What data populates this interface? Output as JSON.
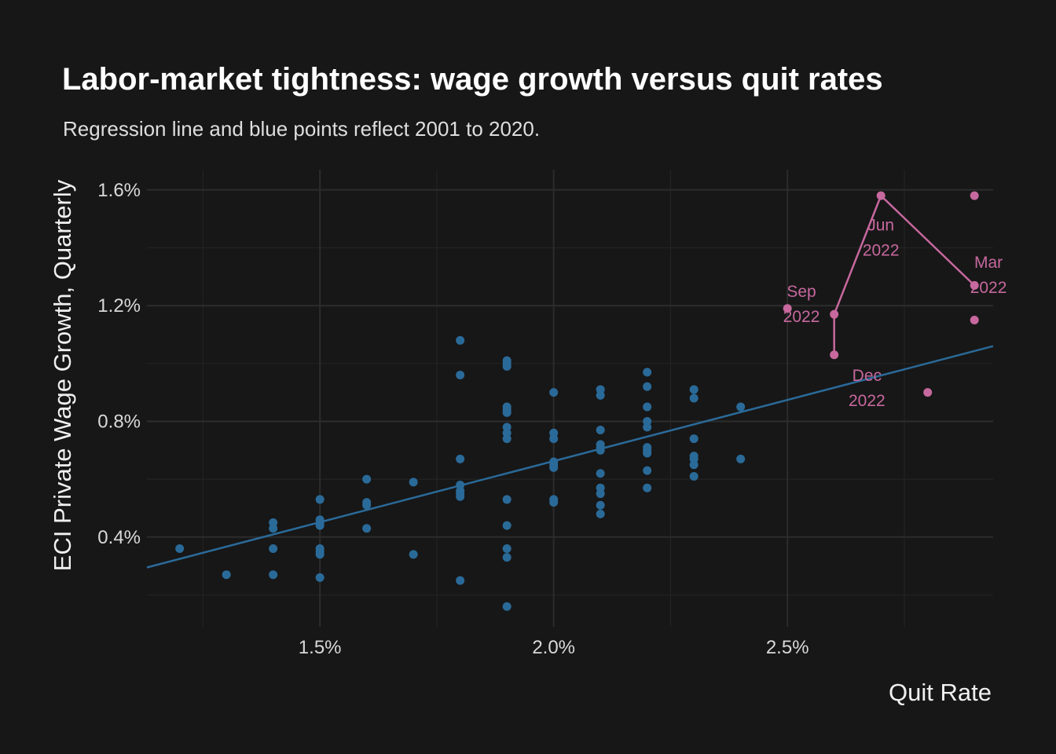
{
  "chart_data": {
    "type": "scatter",
    "title": "Labor-market tightness: wage growth versus quit rates",
    "subtitle": "Regression line and blue points reflect 2001 to 2020.",
    "xlabel": "Quit Rate",
    "ylabel": "ECI Private Wage Growth, Quarterly",
    "xlim": [
      1.13,
      2.94
    ],
    "ylim": [
      0.09,
      1.67
    ],
    "x_major_ticks": [
      1.5,
      2.0,
      2.5
    ],
    "x_tick_labels": [
      "1.5%",
      "2.0%",
      "2.5%"
    ],
    "x_minor_ticks": [
      1.25,
      1.75,
      2.25,
      2.75
    ],
    "y_major_ticks": [
      0.4,
      0.8,
      1.2,
      1.6
    ],
    "y_tick_labels": [
      "0.4%",
      "0.8%",
      "1.2%",
      "1.6%"
    ],
    "y_minor_ticks": [
      0.2,
      0.6,
      1.0,
      1.4
    ],
    "grid": true,
    "colors": {
      "historical": "#2a6a99",
      "recent": "#c7689e",
      "background": "#171717"
    },
    "regression_line": {
      "x": [
        1.13,
        2.94
      ],
      "y": [
        0.295,
        1.06
      ]
    },
    "series": [
      {
        "points": [
          {
            "x": 1.2,
            "y": 0.36
          },
          {
            "x": 1.3,
            "y": 0.27
          },
          {
            "x": 1.4,
            "y": 0.45
          },
          {
            "x": 1.4,
            "y": 0.43
          },
          {
            "x": 1.4,
            "y": 0.36
          },
          {
            "x": 1.4,
            "y": 0.27
          },
          {
            "x": 1.5,
            "y": 0.53
          },
          {
            "x": 1.5,
            "y": 0.46
          },
          {
            "x": 1.5,
            "y": 0.45
          },
          {
            "x": 1.5,
            "y": 0.44
          },
          {
            "x": 1.5,
            "y": 0.36
          },
          {
            "x": 1.5,
            "y": 0.35
          },
          {
            "x": 1.5,
            "y": 0.34
          },
          {
            "x": 1.5,
            "y": 0.26
          },
          {
            "x": 1.6,
            "y": 0.6
          },
          {
            "x": 1.6,
            "y": 0.52
          },
          {
            "x": 1.6,
            "y": 0.51
          },
          {
            "x": 1.6,
            "y": 0.43
          },
          {
            "x": 1.7,
            "y": 0.59
          },
          {
            "x": 1.7,
            "y": 0.34
          },
          {
            "x": 1.8,
            "y": 1.08
          },
          {
            "x": 1.8,
            "y": 0.96
          },
          {
            "x": 1.8,
            "y": 0.67
          },
          {
            "x": 1.8,
            "y": 0.58
          },
          {
            "x": 1.8,
            "y": 0.56
          },
          {
            "x": 1.8,
            "y": 0.55
          },
          {
            "x": 1.8,
            "y": 0.54
          },
          {
            "x": 1.8,
            "y": 0.25
          },
          {
            "x": 1.9,
            "y": 1.01
          },
          {
            "x": 1.9,
            "y": 1.0
          },
          {
            "x": 1.9,
            "y": 0.99
          },
          {
            "x": 1.9,
            "y": 0.85
          },
          {
            "x": 1.9,
            "y": 0.84
          },
          {
            "x": 1.9,
            "y": 0.83
          },
          {
            "x": 1.9,
            "y": 0.78
          },
          {
            "x": 1.9,
            "y": 0.76
          },
          {
            "x": 1.9,
            "y": 0.74
          },
          {
            "x": 1.9,
            "y": 0.53
          },
          {
            "x": 1.9,
            "y": 0.44
          },
          {
            "x": 1.9,
            "y": 0.36
          },
          {
            "x": 1.9,
            "y": 0.33
          },
          {
            "x": 1.9,
            "y": 0.16
          },
          {
            "x": 2.0,
            "y": 0.9
          },
          {
            "x": 2.0,
            "y": 0.76
          },
          {
            "x": 2.0,
            "y": 0.74
          },
          {
            "x": 2.0,
            "y": 0.66
          },
          {
            "x": 2.0,
            "y": 0.65
          },
          {
            "x": 2.0,
            "y": 0.64
          },
          {
            "x": 2.0,
            "y": 0.53
          },
          {
            "x": 2.0,
            "y": 0.52
          },
          {
            "x": 2.1,
            "y": 0.91
          },
          {
            "x": 2.1,
            "y": 0.89
          },
          {
            "x": 2.1,
            "y": 0.77
          },
          {
            "x": 2.1,
            "y": 0.72
          },
          {
            "x": 2.1,
            "y": 0.71
          },
          {
            "x": 2.1,
            "y": 0.7
          },
          {
            "x": 2.1,
            "y": 0.62
          },
          {
            "x": 2.1,
            "y": 0.57
          },
          {
            "x": 2.1,
            "y": 0.55
          },
          {
            "x": 2.1,
            "y": 0.51
          },
          {
            "x": 2.1,
            "y": 0.48
          },
          {
            "x": 2.2,
            "y": 0.97
          },
          {
            "x": 2.2,
            "y": 0.92
          },
          {
            "x": 2.2,
            "y": 0.85
          },
          {
            "x": 2.2,
            "y": 0.8
          },
          {
            "x": 2.2,
            "y": 0.78
          },
          {
            "x": 2.2,
            "y": 0.71
          },
          {
            "x": 2.2,
            "y": 0.7
          },
          {
            "x": 2.2,
            "y": 0.69
          },
          {
            "x": 2.2,
            "y": 0.63
          },
          {
            "x": 2.2,
            "y": 0.57
          },
          {
            "x": 2.3,
            "y": 0.91
          },
          {
            "x": 2.3,
            "y": 0.88
          },
          {
            "x": 2.3,
            "y": 0.74
          },
          {
            "x": 2.3,
            "y": 0.68
          },
          {
            "x": 2.3,
            "y": 0.67
          },
          {
            "x": 2.3,
            "y": 0.65
          },
          {
            "x": 2.3,
            "y": 0.61
          },
          {
            "x": 2.4,
            "y": 0.85
          },
          {
            "x": 2.4,
            "y": 0.67
          }
        ]
      },
      {
        "points": [
          {
            "x": 2.5,
            "y": 1.19
          },
          {
            "x": 2.8,
            "y": 0.9
          },
          {
            "x": 2.9,
            "y": 1.58
          },
          {
            "x": 2.9,
            "y": 1.15
          }
        ],
        "path": [
          {
            "x": 2.9,
            "y": 1.27
          },
          {
            "x": 2.7,
            "y": 1.58
          },
          {
            "x": 2.6,
            "y": 1.17
          },
          {
            "x": 2.6,
            "y": 1.03
          }
        ]
      }
    ],
    "annotations": [
      {
        "text": [
          "Sep",
          "2022"
        ],
        "x": 2.53,
        "y": 1.23
      },
      {
        "text": [
          "Jun",
          "2022"
        ],
        "x": 2.7,
        "y": 1.46
      },
      {
        "text": [
          "Mar",
          "2022"
        ],
        "x": 2.93,
        "y": 1.33
      },
      {
        "text": [
          "Dec",
          "2022"
        ],
        "x": 2.67,
        "y": 0.94
      }
    ]
  }
}
